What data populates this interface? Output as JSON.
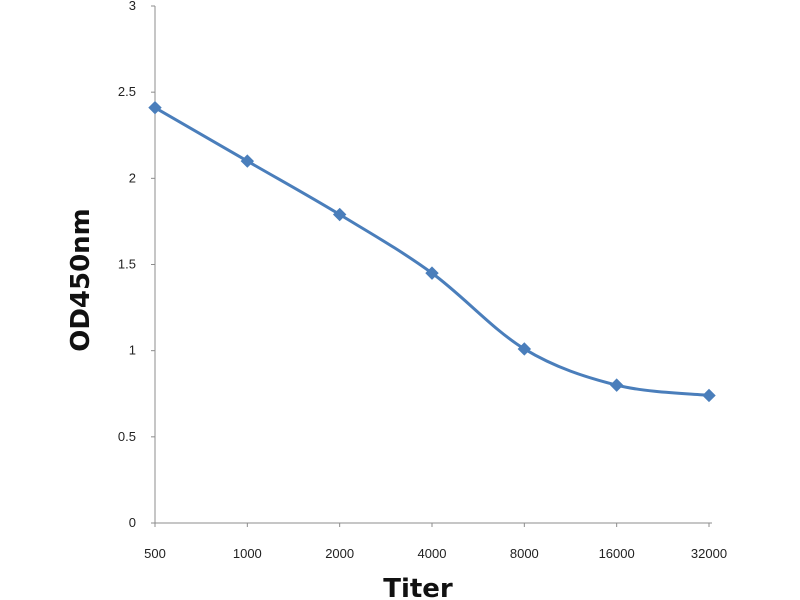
{
  "chart_data": {
    "type": "line",
    "title": "",
    "xlabel": "Titer",
    "ylabel": "OD450nm",
    "categories": [
      "500",
      "1000",
      "2000",
      "4000",
      "8000",
      "16000",
      "32000"
    ],
    "series": [
      {
        "values": [
          2.41,
          2.1,
          1.79,
          1.45,
          1.01,
          0.8,
          0.74
        ]
      }
    ],
    "y_ticks": [
      "0",
      "0.5",
      "1",
      "1.5",
      "2",
      "2.5",
      "3"
    ],
    "ylim": [
      0,
      3
    ],
    "grid": false,
    "legend": "none",
    "marker": "diamond",
    "smooth": true,
    "series_color": "#4a7ebb"
  }
}
